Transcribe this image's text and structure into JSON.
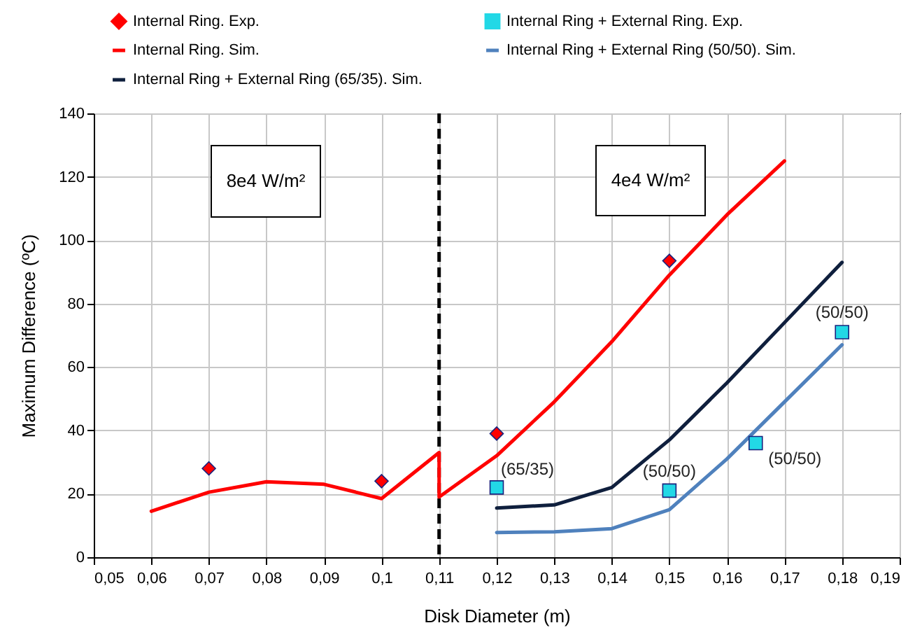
{
  "chart_data": {
    "type": "line",
    "xlabel": "Disk Diameter (m)",
    "ylabel": "Maximum Difference (ºC)",
    "xlim": [
      0.05,
      0.19
    ],
    "xticks": [
      {
        "value": 0.05,
        "label": "0,05"
      },
      {
        "value": 0.06,
        "label": "0,06"
      },
      {
        "value": 0.07,
        "label": "0,07"
      },
      {
        "value": 0.08,
        "label": "0,08"
      },
      {
        "value": 0.09,
        "label": "0,09"
      },
      {
        "value": 0.1,
        "label": "0,1"
      },
      {
        "value": 0.11,
        "label": "0,11"
      },
      {
        "value": 0.12,
        "label": "0,12"
      },
      {
        "value": 0.13,
        "label": "0,13"
      },
      {
        "value": 0.14,
        "label": "0,14"
      },
      {
        "value": 0.15,
        "label": "0,15"
      },
      {
        "value": 0.16,
        "label": "0,16"
      },
      {
        "value": 0.17,
        "label": "0,17"
      },
      {
        "value": 0.18,
        "label": "0,18"
      },
      {
        "value": 0.19,
        "label": "0,19"
      }
    ],
    "ylim": [
      0,
      140
    ],
    "yticks": [
      0,
      20,
      40,
      60,
      80,
      100,
      120,
      140
    ],
    "grid": true,
    "legend": "top",
    "series": [
      {
        "name": "Internal Ring. Exp.",
        "type": "scatter",
        "marker": "diamond",
        "color": "#ff0000",
        "x": [
          0.07,
          0.1,
          0.12,
          0.15
        ],
        "values": [
          28,
          24,
          39,
          93.5
        ]
      },
      {
        "name": "Internal Ring + External Ring. Exp.",
        "type": "scatter",
        "marker": "square",
        "color": "#22d8e6",
        "x": [
          0.12,
          0.15,
          0.165,
          0.18
        ],
        "values": [
          22,
          21,
          36,
          71
        ]
      },
      {
        "name": "Internal Ring. Sim.",
        "type": "line",
        "color": "#ff0000",
        "x": [
          0.06,
          0.07,
          0.08,
          0.09,
          0.1,
          0.11,
          0.11,
          0.12,
          0.13,
          0.14,
          0.15,
          0.16,
          0.17
        ],
        "values": [
          14.5,
          20.5,
          23.8,
          23,
          18.5,
          33,
          19,
          32,
          49,
          68,
          89,
          108,
          125
        ]
      },
      {
        "name": "Internal Ring + External Ring (50/50). Sim.",
        "type": "line",
        "color": "#4f81bd",
        "x": [
          0.12,
          0.13,
          0.14,
          0.15,
          0.16,
          0.17,
          0.18
        ],
        "values": [
          7.8,
          8,
          9,
          15,
          31,
          49,
          67
        ]
      },
      {
        "name": "Internal Ring + External Ring (65/35). Sim.",
        "type": "line",
        "color": "#0f1f3d",
        "x": [
          0.12,
          0.13,
          0.14,
          0.15,
          0.16,
          0.17,
          0.18
        ],
        "values": [
          15.5,
          16.5,
          22,
          37,
          55,
          74,
          93
        ]
      }
    ],
    "ref_lines": [
      {
        "axis": "x",
        "value": 0.11,
        "color": "#000000",
        "line_style": "dashed"
      }
    ],
    "annotations": [
      "8e4 W/m²",
      "4e4 W/m²",
      {
        "text": "(65/35)",
        "x": 0.12,
        "y": 22
      },
      {
        "text": "(50/50)",
        "x": 0.15,
        "y": 21
      },
      {
        "text": "(50/50)",
        "x": 0.165,
        "y": 36
      },
      {
        "text": "(50/50)",
        "x": 0.18,
        "y": 71
      }
    ]
  }
}
